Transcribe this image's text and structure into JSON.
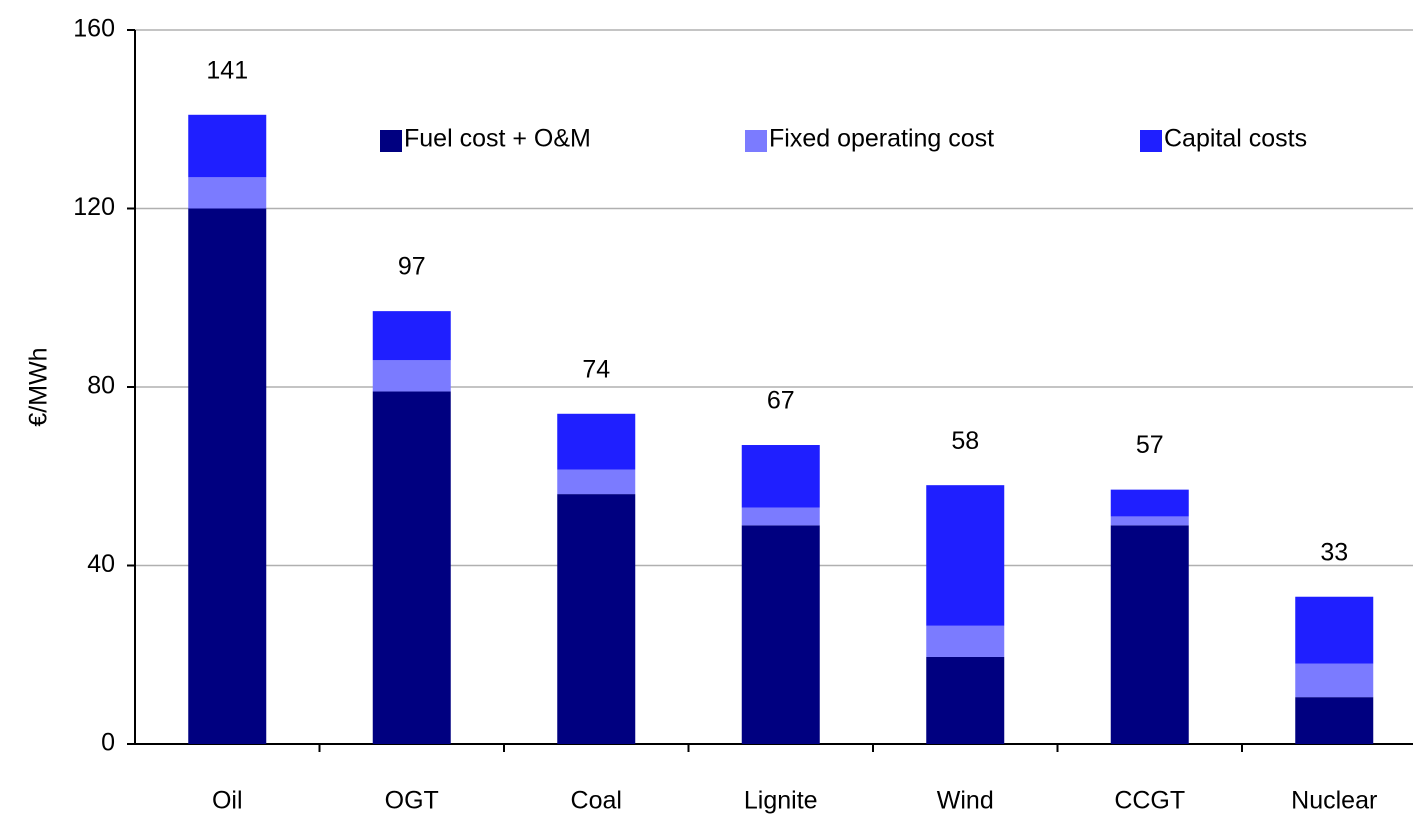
{
  "chart_data": {
    "type": "stacked_bar",
    "y_label": "€/MWh",
    "categories": [
      "Oil",
      "OGT",
      "Coal",
      "Lignite",
      "Wind",
      "CCGT",
      "Nuclear"
    ],
    "series": [
      {
        "name": "Fuel cost + O&M",
        "color": "#000080",
        "values": [
          120,
          79,
          56,
          49,
          19.5,
          49,
          10.5
        ]
      },
      {
        "name": "Fixed operating cost",
        "color": "#7b7bff",
        "values": [
          7,
          7,
          5.5,
          4,
          7,
          2,
          7.5
        ]
      },
      {
        "name": "Capital costs",
        "color": "#1f1fff",
        "values": [
          14,
          11,
          12.5,
          14,
          31.5,
          6,
          15
        ]
      }
    ],
    "totals": [
      141,
      97,
      74,
      67,
      58,
      57,
      33
    ],
    "ylim": [
      0,
      160
    ],
    "yticks": [
      0,
      40,
      80,
      120,
      160
    ],
    "grid": true,
    "legend": "top"
  }
}
